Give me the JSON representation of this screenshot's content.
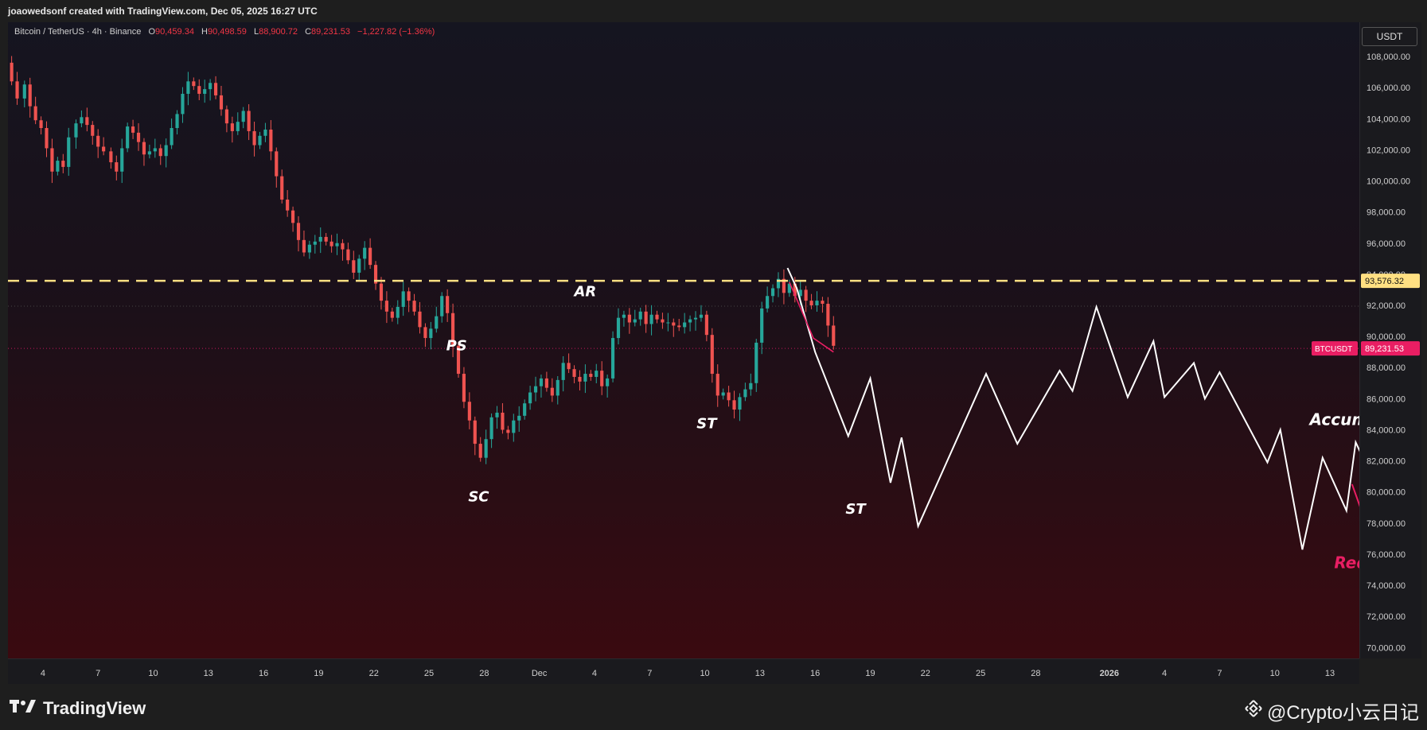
{
  "header": {
    "attribution": "joaowedsonf created with TradingView.com, Dec 05, 2025 16:27 UTC"
  },
  "legend": {
    "symbol": "Bitcoin / TetherUS · 4h · Binance",
    "open_label": "O",
    "open": "90,459.34",
    "high_label": "H",
    "high": "90,498.59",
    "low_label": "L",
    "low": "88,900.72",
    "close_label": "C",
    "close": "89,231.53",
    "change": "−1,227.82 (−1.36%)"
  },
  "price_axis": {
    "currency": "USDT",
    "level_tag": "93,576.32",
    "symbol_tag": "BTCUSDT",
    "current_tag": "89,231.53"
  },
  "footer": {
    "brand": "TradingView",
    "watermark": "@Crypto小云日记"
  },
  "colors": {
    "up": "#26a69a",
    "down": "#ef5350",
    "resistance": "#ffe082",
    "projection": "#ffffff",
    "redistribution": "#e91e63",
    "current_tag": "#e91e63",
    "level_tag": "#ffe082"
  },
  "icons": {
    "tv_logo": "tradingview-logo-icon",
    "binance": "binance-icon"
  },
  "chart_data": {
    "type": "candlestick",
    "timeframe": "4h",
    "y_axis": {
      "ticks": [
        70000,
        72000,
        74000,
        76000,
        78000,
        80000,
        82000,
        84000,
        86000,
        88000,
        90000,
        92000,
        94000,
        96000,
        98000,
        100000,
        102000,
        104000,
        106000,
        108000
      ],
      "tick_labels": [
        "70,000.00",
        "72,000.00",
        "74,000.00",
        "76,000.00",
        "78,000.00",
        "80,000.00",
        "82,000.00",
        "84,000.00",
        "86,000.00",
        "88,000.00",
        "90,000.00",
        "92,000.00",
        "94,000.00",
        "96,000.00",
        "98,000.00",
        "100,000.00",
        "102,000.00",
        "104,000.00",
        "106,000.00",
        "108,000.00"
      ],
      "range": [
        69300,
        110200
      ]
    },
    "x_axis": {
      "tick_labels": [
        "4",
        "7",
        "10",
        "13",
        "16",
        "19",
        "22",
        "25",
        "28",
        "Dec",
        "4",
        "7",
        "10",
        "13",
        "16",
        "19",
        "22",
        "25",
        "28",
        "2026",
        "4",
        "7",
        "10",
        "13"
      ],
      "tick_days": [
        4,
        7,
        10,
        13,
        16,
        19,
        22,
        25,
        28,
        31,
        34,
        37,
        40,
        43,
        46,
        49,
        52,
        55,
        58,
        62,
        65,
        68,
        71,
        74
      ],
      "range_days": [
        2.1,
        75.6
      ],
      "bold_labels": [
        "2026"
      ]
    },
    "closes": [
      [
        1.0,
        110000
      ],
      [
        1.3,
        108500
      ],
      [
        1.6,
        107200
      ],
      [
        2.0,
        107600
      ],
      [
        2.3,
        106400
      ],
      [
        2.6,
        105300
      ],
      [
        3.0,
        106200
      ],
      [
        3.3,
        104800
      ],
      [
        3.6,
        103900
      ],
      [
        3.9,
        103400
      ],
      [
        4.2,
        102100
      ],
      [
        4.5,
        100600
      ],
      [
        4.8,
        101300
      ],
      [
        5.1,
        100900
      ],
      [
        5.4,
        102800
      ],
      [
        5.8,
        103700
      ],
      [
        6.1,
        104100
      ],
      [
        6.4,
        103600
      ],
      [
        6.7,
        102900
      ],
      [
        7.0,
        102200
      ],
      [
        7.3,
        101900
      ],
      [
        7.7,
        101200
      ],
      [
        8.0,
        100600
      ],
      [
        8.3,
        102100
      ],
      [
        8.6,
        103500
      ],
      [
        8.9,
        103100
      ],
      [
        9.2,
        102500
      ],
      [
        9.5,
        101700
      ],
      [
        9.8,
        101900
      ],
      [
        10.1,
        102100
      ],
      [
        10.4,
        101600
      ],
      [
        10.7,
        102300
      ],
      [
        11.0,
        103400
      ],
      [
        11.3,
        104300
      ],
      [
        11.6,
        105600
      ],
      [
        11.9,
        106400
      ],
      [
        12.2,
        106100
      ],
      [
        12.5,
        105600
      ],
      [
        12.8,
        105900
      ],
      [
        13.1,
        106300
      ],
      [
        13.4,
        105500
      ],
      [
        13.7,
        104600
      ],
      [
        14.0,
        103700
      ],
      [
        14.3,
        103200
      ],
      [
        14.6,
        103800
      ],
      [
        14.9,
        104500
      ],
      [
        15.2,
        103200
      ],
      [
        15.5,
        102300
      ],
      [
        15.8,
        102900
      ],
      [
        16.1,
        103300
      ],
      [
        16.4,
        101900
      ],
      [
        16.7,
        100300
      ],
      [
        17.0,
        98800
      ],
      [
        17.3,
        98100
      ],
      [
        17.6,
        97300
      ],
      [
        17.9,
        96200
      ],
      [
        18.2,
        95400
      ],
      [
        18.5,
        95900
      ],
      [
        18.8,
        96100
      ],
      [
        19.1,
        96400
      ],
      [
        19.4,
        96100
      ],
      [
        19.7,
        95800
      ],
      [
        20.0,
        96000
      ],
      [
        20.3,
        95600
      ],
      [
        20.6,
        94900
      ],
      [
        20.9,
        94100
      ],
      [
        21.2,
        95000
      ],
      [
        21.5,
        95700
      ],
      [
        21.8,
        94600
      ],
      [
        22.1,
        93400
      ],
      [
        22.4,
        92300
      ],
      [
        22.7,
        91600
      ],
      [
        23.0,
        91200
      ],
      [
        23.3,
        91900
      ],
      [
        23.6,
        92900
      ],
      [
        23.9,
        92300
      ],
      [
        24.2,
        91600
      ],
      [
        24.5,
        90600
      ],
      [
        24.8,
        89900
      ],
      [
        25.1,
        90500
      ],
      [
        25.4,
        91300
      ],
      [
        25.7,
        92600
      ],
      [
        26.0,
        91500
      ],
      [
        26.3,
        89400
      ],
      [
        26.6,
        87600
      ],
      [
        26.9,
        85800
      ],
      [
        27.2,
        84600
      ],
      [
        27.5,
        83100
      ],
      [
        27.8,
        82200
      ],
      [
        28.1,
        83400
      ],
      [
        28.4,
        84800
      ],
      [
        28.7,
        85100
      ],
      [
        29.0,
        84000
      ],
      [
        29.3,
        83800
      ],
      [
        29.6,
        84600
      ],
      [
        29.9,
        84900
      ],
      [
        30.2,
        85700
      ],
      [
        30.5,
        86400
      ],
      [
        30.8,
        86800
      ],
      [
        31.1,
        87300
      ],
      [
        31.4,
        86700
      ],
      [
        31.7,
        86200
      ],
      [
        32.0,
        87200
      ],
      [
        32.3,
        88300
      ],
      [
        32.6,
        87900
      ],
      [
        32.9,
        87400
      ],
      [
        33.2,
        87100
      ],
      [
        33.5,
        87600
      ],
      [
        33.8,
        87400
      ],
      [
        34.1,
        87800
      ],
      [
        34.4,
        86800
      ],
      [
        34.7,
        87300
      ],
      [
        35.0,
        89900
      ],
      [
        35.3,
        91200
      ],
      [
        35.6,
        91400
      ],
      [
        35.9,
        90900
      ],
      [
        36.2,
        91100
      ],
      [
        36.5,
        91600
      ],
      [
        36.8,
        90800
      ],
      [
        37.1,
        91400
      ],
      [
        37.4,
        91100
      ],
      [
        37.7,
        90900
      ],
      [
        38.0,
        90900
      ],
      [
        38.3,
        90700
      ],
      [
        38.6,
        90600
      ],
      [
        38.9,
        90900
      ],
      [
        39.2,
        91100
      ],
      [
        39.5,
        91200
      ],
      [
        39.8,
        91400
      ],
      [
        40.1,
        90100
      ],
      [
        40.4,
        87600
      ],
      [
        40.7,
        86200
      ],
      [
        41.0,
        86400
      ],
      [
        41.3,
        85900
      ],
      [
        41.6,
        85300
      ],
      [
        41.9,
        86100
      ],
      [
        42.2,
        86600
      ],
      [
        42.5,
        87000
      ],
      [
        42.8,
        89600
      ],
      [
        43.1,
        91800
      ],
      [
        43.4,
        92600
      ],
      [
        43.7,
        93100
      ],
      [
        44.0,
        93700
      ],
      [
        44.3,
        92800
      ],
      [
        44.6,
        93400
      ],
      [
        44.9,
        92600
      ],
      [
        45.2,
        93000
      ],
      [
        45.5,
        92300
      ],
      [
        45.8,
        92000
      ],
      [
        46.1,
        92300
      ],
      [
        46.4,
        92100
      ],
      [
        46.7,
        90700
      ],
      [
        47.0,
        89400
      ]
    ],
    "resistance_level": 93576.32,
    "accumulation_path": [
      [
        44.5,
        94400
      ],
      [
        45.0,
        93100
      ],
      [
        46.0,
        89000
      ],
      [
        47.8,
        83600
      ],
      [
        49.0,
        87300
      ],
      [
        50.1,
        80600
      ],
      [
        50.7,
        83500
      ],
      [
        51.6,
        77800
      ],
      [
        55.3,
        87600
      ],
      [
        57.0,
        83100
      ],
      [
        59.3,
        87800
      ],
      [
        60.0,
        86500
      ],
      [
        61.3,
        91900
      ],
      [
        63.0,
        86100
      ],
      [
        64.4,
        89700
      ],
      [
        65.0,
        86100
      ],
      [
        66.6,
        88300
      ],
      [
        67.2,
        86000
      ],
      [
        68.0,
        87700
      ],
      [
        70.6,
        81900
      ],
      [
        71.3,
        84000
      ],
      [
        72.5,
        76300
      ],
      [
        73.6,
        82200
      ],
      [
        74.9,
        78800
      ],
      [
        75.4,
        83200
      ],
      [
        76.5,
        80400
      ],
      [
        77.4,
        85800
      ],
      [
        78.7,
        82400
      ],
      [
        80.4,
        94900
      ]
    ],
    "redistribution_path": [
      [
        44.6,
        93500
      ],
      [
        45.9,
        89900
      ],
      [
        47.0,
        89000
      ]
    ],
    "redistribution_path_2": [
      [
        75.2,
        80500
      ],
      [
        76.2,
        77200
      ],
      [
        77.0,
        78900
      ],
      [
        79.2,
        72100
      ]
    ],
    "annotations": [
      {
        "text": "PS",
        "day": 26.5,
        "price": 89100,
        "color": "#ffffff"
      },
      {
        "text": "SC",
        "day": 27.7,
        "price": 79400,
        "color": "#ffffff"
      },
      {
        "text": "AR",
        "day": 33.5,
        "price": 92600,
        "color": "#ffffff"
      },
      {
        "text": "ST",
        "day": 40.1,
        "price": 84100,
        "color": "#ffffff"
      },
      {
        "text": "ST",
        "day": 48.2,
        "price": 78600,
        "color": "#ffffff"
      },
      {
        "text": "Accumulation",
        "day": 76.2,
        "price": 84300,
        "color": "#ffffff"
      },
      {
        "text": "Redistribution",
        "day": 77.7,
        "price": 75100,
        "color": "#e91e63"
      }
    ]
  }
}
